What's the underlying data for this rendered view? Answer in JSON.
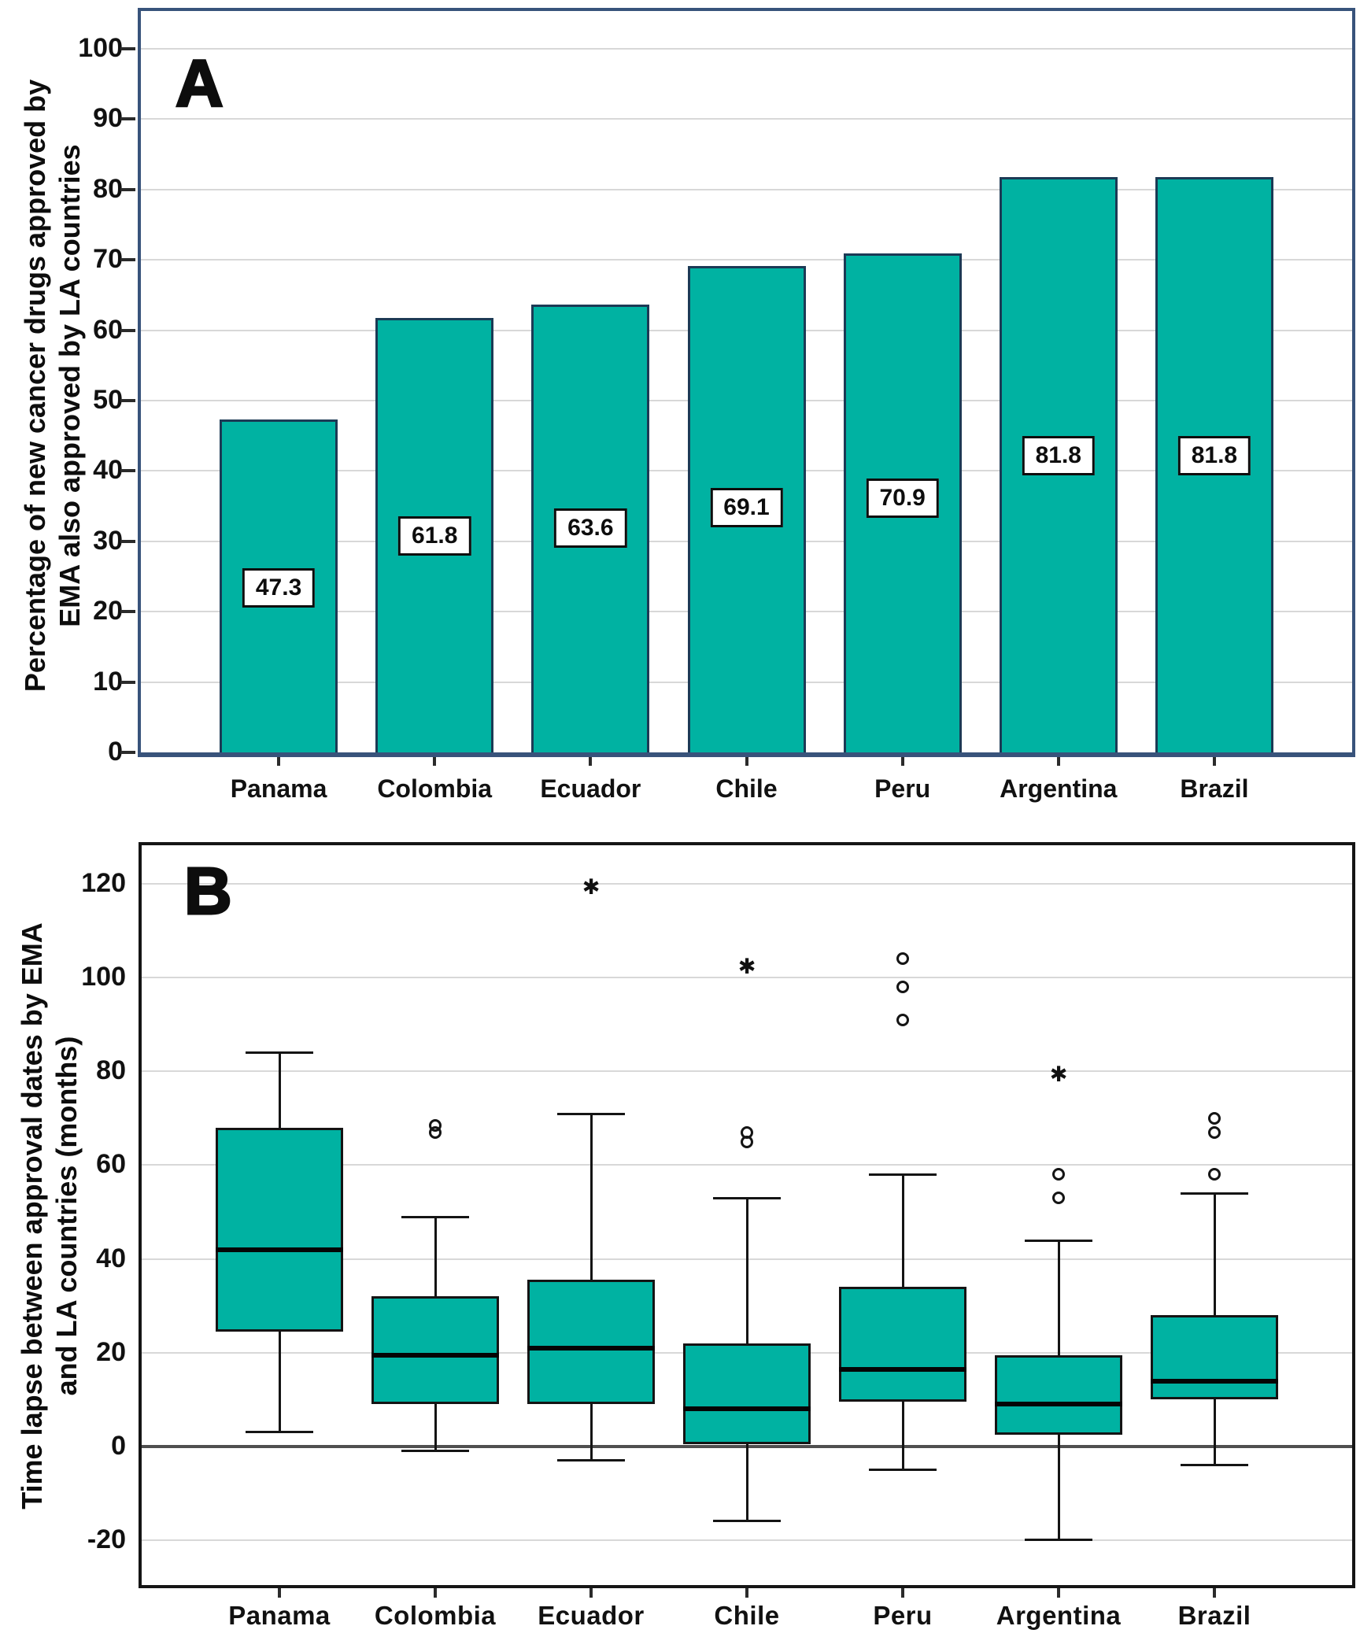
{
  "figure": {
    "accent_color": "#00B2A2",
    "panel_a_frame_color": "#38537B",
    "panel_b_frame_color": "#151515",
    "gridline_color": "#D8D8D8"
  },
  "chart_data": [
    {
      "type": "bar",
      "panel_label": "A",
      "title": "",
      "ylabel_lines": [
        "Percentage of new cancer drugs approved by",
        "EMA also approved by LA countries"
      ],
      "categories": [
        "Panama",
        "Colombia",
        "Ecuador",
        "Chile",
        "Peru",
        "Argentina",
        "Brazil"
      ],
      "values": [
        47.3,
        61.8,
        63.6,
        69.1,
        70.9,
        81.8,
        81.8
      ],
      "bar_labels": [
        "47.3",
        "61.8",
        "63.6",
        "69.1",
        "70.9",
        "81.8",
        "81.8"
      ],
      "bar_label_center_y": [
        23.3,
        30.7,
        31.8,
        34.7,
        36.0,
        42.1,
        42.1
      ],
      "y_ticks": [
        0,
        10,
        20,
        30,
        40,
        50,
        60,
        70,
        80,
        90,
        100
      ],
      "ylim": [
        0,
        105.5
      ],
      "grid": true,
      "legend": "none",
      "bar_color": "#00B2A2"
    },
    {
      "type": "boxplot",
      "panel_label": "B",
      "title": "",
      "ylabel_lines": [
        "Time lapse between approval dates by EMA",
        "and LA countries (months)"
      ],
      "categories": [
        "Panama",
        "Colombia",
        "Ecuador",
        "Chile",
        "Peru",
        "Argentina",
        "Brazil"
      ],
      "series": [
        {
          "category": "Panama",
          "whisker_low": 3,
          "q1": 24.5,
          "median": 42,
          "q3": 68,
          "whisker_high": 84,
          "outliers": [],
          "extremes": []
        },
        {
          "category": "Colombia",
          "whisker_low": -1,
          "q1": 9,
          "median": 19.5,
          "q3": 32,
          "whisker_high": 49,
          "outliers": [
            67,
            68.5
          ],
          "extremes": []
        },
        {
          "category": "Ecuador",
          "whisker_low": -3,
          "q1": 9,
          "median": 21,
          "q3": 35.5,
          "whisker_high": 71,
          "outliers": [],
          "extremes": [
            119
          ]
        },
        {
          "category": "Chile",
          "whisker_low": -16,
          "q1": 0.5,
          "median": 8,
          "q3": 22,
          "whisker_high": 53,
          "outliers": [
            65,
            67
          ],
          "extremes": [
            102
          ]
        },
        {
          "category": "Peru",
          "whisker_low": -5,
          "q1": 9.5,
          "median": 16.5,
          "q3": 34,
          "whisker_high": 58,
          "outliers": [
            91,
            98,
            104
          ],
          "extremes": []
        },
        {
          "category": "Argentina",
          "whisker_low": -20,
          "q1": 2.5,
          "median": 9,
          "q3": 19.5,
          "whisker_high": 44,
          "outliers": [
            53,
            58
          ],
          "extremes": [
            79
          ]
        },
        {
          "category": "Brazil",
          "whisker_low": -4,
          "q1": 10,
          "median": 14,
          "q3": 28,
          "whisker_high": 54,
          "outliers": [
            58,
            67,
            70
          ],
          "extremes": []
        }
      ],
      "y_ticks": [
        120,
        100,
        80,
        60,
        40,
        20,
        0,
        -20
      ],
      "ylim": [
        -29.5,
        128
      ],
      "grid": true,
      "zero_reference_line": true,
      "legend": "none",
      "box_color": "#00B2A2",
      "outlier_marker": "open-circle",
      "extreme_marker": "asterisk",
      "extreme_glyph": "✱"
    }
  ]
}
